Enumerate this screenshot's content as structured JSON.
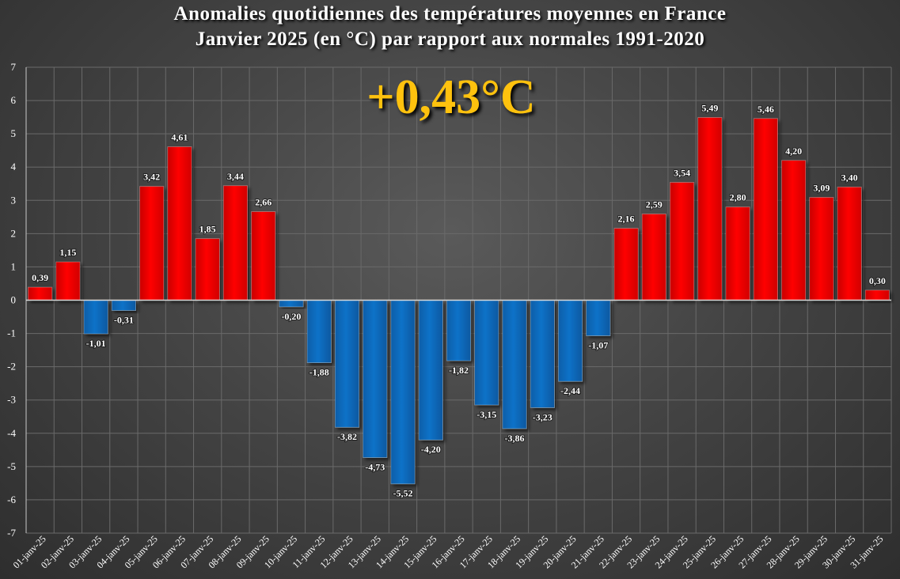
{
  "headline": "+0,43°C",
  "colors": {
    "positive": "#ff0000",
    "negative": "#0a72c8",
    "grid": "#6a6a6a",
    "axis": "#c8c8c8",
    "headline": "#ffc20e",
    "text": "#ffffff"
  },
  "chart_data": {
    "type": "bar",
    "title": "Anomalies quotidiennes des températures moyennes en France",
    "subtitle": "Janvier 2025 (en °C) par rapport aux normales 1991-2020",
    "xlabel": "",
    "ylabel": "",
    "ylim": [
      -7,
      7
    ],
    "yticks": [
      "-7",
      "-6",
      "-5",
      "-4",
      "-3",
      "-2",
      "-1",
      "0",
      "1",
      "2",
      "3",
      "4",
      "5",
      "6",
      "7"
    ],
    "grid": true,
    "categories": [
      "01-janv-25",
      "02-janv-25",
      "03-janv-25",
      "04-janv-25",
      "05-janv-25",
      "06-janv-25",
      "07-janv-25",
      "08-janv-25",
      "09-janv-25",
      "10-janv-25",
      "11-janv-25",
      "12-janv-25",
      "13-janv-25",
      "14-janv-25",
      "15-janv-25",
      "16-janv-25",
      "17-janv-25",
      "18-janv-25",
      "19-janv-25",
      "20-janv-25",
      "21-janv-25",
      "22-janv-25",
      "23-janv-25",
      "24-janv-25",
      "25-janv-25",
      "26-janv-25",
      "27-janv-25",
      "28-janv-25",
      "29-janv-25",
      "30-janv-25",
      "31-janv-25"
    ],
    "values": [
      0.39,
      1.15,
      -1.01,
      -0.31,
      3.42,
      4.61,
      1.85,
      3.44,
      2.66,
      -0.2,
      -1.88,
      -3.82,
      -4.73,
      -5.52,
      -4.2,
      -1.82,
      -3.15,
      -3.86,
      -3.23,
      -2.44,
      -1.07,
      2.16,
      2.59,
      3.54,
      5.49,
      2.8,
      5.46,
      4.2,
      3.09,
      3.4,
      0.3
    ],
    "labels": [
      "0,39",
      "1,15",
      "-1,01",
      "-0,31",
      "3,42",
      "4,61",
      "1,85",
      "3,44",
      "2,66",
      "-0,20",
      "-1,88",
      "-3,82",
      "-4,73",
      "-5,52",
      "-4,20",
      "-1,82",
      "-3,15",
      "-3,86",
      "-3,23",
      "-2,44",
      "-1,07",
      "2,16",
      "2,59",
      "3,54",
      "5,49",
      "2,80",
      "5,46",
      "4,20",
      "3,09",
      "3,40",
      "0,30"
    ]
  }
}
